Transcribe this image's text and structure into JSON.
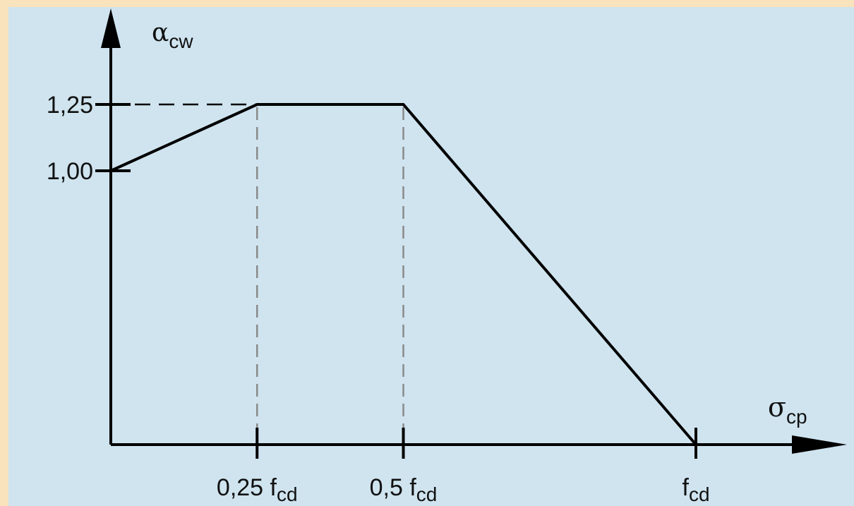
{
  "chart_data": {
    "type": "line",
    "title": "",
    "ylabel": {
      "symbol": "α",
      "subscript": "cw"
    },
    "xlabel": {
      "symbol": "σ",
      "subscript": "cp"
    },
    "y_ticks": [
      {
        "value": 1.25,
        "label": "1,25"
      },
      {
        "value": 1.0,
        "label": "1,00"
      }
    ],
    "x_ticks": [
      {
        "value": 0.25,
        "label": "0,25 f",
        "subscript": "cd"
      },
      {
        "value": 0.5,
        "label": "0,5 f",
        "subscript": "cd"
      },
      {
        "value": 1.0,
        "label": "f",
        "subscript": "cd"
      }
    ],
    "x_range": [
      0,
      1.0
    ],
    "series": [
      {
        "x": [
          0,
          0.25,
          0.5,
          1.0
        ],
        "y": [
          1.0,
          1.25,
          1.25,
          0
        ]
      }
    ],
    "colors": {
      "background": "#cfe4ef",
      "border": "#f8e3bd",
      "line": "#000000",
      "guide": "#8a8a8a"
    }
  }
}
